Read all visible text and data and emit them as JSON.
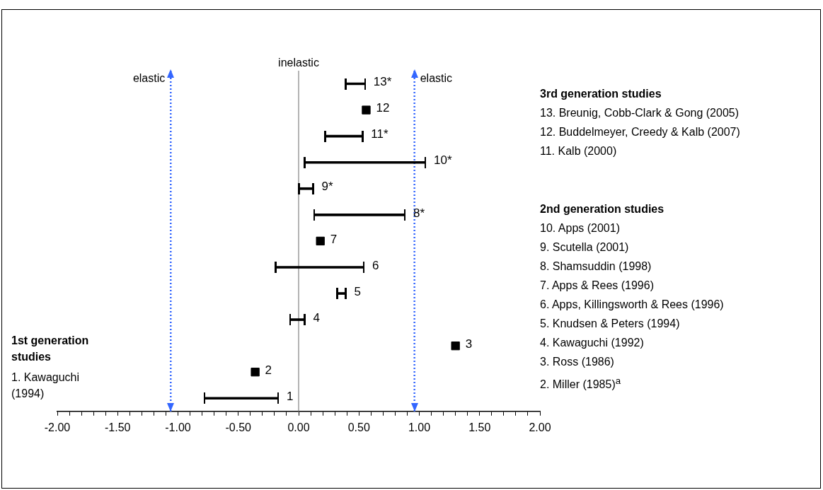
{
  "chart_data": {
    "type": "bar",
    "orientation": "horizontal",
    "categories": [
      "13*",
      "12",
      "11*",
      "10*",
      "9*",
      "8*",
      "7",
      "6",
      "5",
      "4",
      "3",
      "2",
      "1"
    ],
    "series": [
      {
        "type": "bar",
        "color": "#000000",
        "base": [
          0.39,
          null,
          0.22,
          0.05,
          0.0,
          0.13,
          null,
          -0.19,
          0.32,
          -0.07,
          null,
          null,
          -0.78
        ],
        "values": [
          0.16,
          null,
          0.31,
          1.0,
          0.12,
          0.75,
          null,
          0.73,
          0.07,
          0.12,
          null,
          null,
          0.61
        ]
      },
      {
        "type": "scatter",
        "color": "#000000",
        "marker": "square",
        "values": [
          null,
          0.56,
          null,
          null,
          null,
          null,
          0.18,
          null,
          null,
          null,
          1.3,
          -0.36,
          null
        ]
      }
    ],
    "xlim": [
      -2,
      2
    ],
    "xticks": [
      {
        "value": -2,
        "label": "-2.00"
      },
      {
        "value": -1.9,
        "label": null
      },
      {
        "value": -1.8,
        "label": null
      },
      {
        "value": -1.7,
        "label": null
      },
      {
        "value": -1.6,
        "label": null
      },
      {
        "value": -1.5,
        "label": "-1.50"
      },
      {
        "value": -1.4,
        "label": null
      },
      {
        "value": -1.3,
        "label": null
      },
      {
        "value": -1.2,
        "label": null
      },
      {
        "value": -1.1,
        "label": null
      },
      {
        "value": -1,
        "label": "-1.00"
      },
      {
        "value": -0.9,
        "label": null
      },
      {
        "value": -0.8,
        "label": null
      },
      {
        "value": -0.7,
        "label": null
      },
      {
        "value": -0.6,
        "label": null
      },
      {
        "value": -0.5,
        "label": "-0.50"
      },
      {
        "value": -0.4,
        "label": null
      },
      {
        "value": -0.3,
        "label": null
      },
      {
        "value": -0.2,
        "label": null
      },
      {
        "value": -0.1,
        "label": null
      },
      {
        "value": 0,
        "label": "0.00"
      },
      {
        "value": 0.1,
        "label": null
      },
      {
        "value": 0.2,
        "label": null
      },
      {
        "value": 0.3,
        "label": null
      },
      {
        "value": 0.4,
        "label": null
      },
      {
        "value": 0.5,
        "label": "0.50"
      },
      {
        "value": 0.6,
        "label": null
      },
      {
        "value": 0.7,
        "label": null
      },
      {
        "value": 0.8,
        "label": null
      },
      {
        "value": 0.9,
        "label": null
      },
      {
        "value": 1,
        "label": "1.00"
      },
      {
        "value": 1.1,
        "label": null
      },
      {
        "value": 1.2,
        "label": null
      },
      {
        "value": 1.3,
        "label": null
      },
      {
        "value": 1.4,
        "label": null
      },
      {
        "value": 1.5,
        "label": "1.50"
      },
      {
        "value": 1.6,
        "label": null
      },
      {
        "value": 1.7,
        "label": null
      },
      {
        "value": 1.8,
        "label": null
      },
      {
        "value": 1.9,
        "label": null
      },
      {
        "value": 2,
        "label": "2.00"
      }
    ],
    "tick_labels": "x",
    "grid": false,
    "legend": false,
    "ref_lines": [
      {
        "axis": "x",
        "value": -1.06,
        "label": "elastic",
        "color": "#3366ff",
        "line_style": "dotted"
      },
      {
        "axis": "x",
        "value": 0,
        "label": "inelastic",
        "color": "#808080",
        "line_style": "solid"
      },
      {
        "axis": "x",
        "value": 0.96,
        "label": "elastic",
        "color": "#3366ff",
        "line_style": "dotted"
      }
    ],
    "annotations": [
      "3rd generation studies",
      "13. Breunig, Cobb-Clark & Gong (2005)",
      "12. Buddelmeyer, Creedy & Kalb (2007)",
      "11. Kalb (2000)",
      "2nd generation studies",
      "10. Apps (2001)",
      "9. Scutella (2001)",
      "8. Shamsuddin (1998)",
      "7. Apps & Rees (1996)",
      "6. Apps, Killingsworth & Rees (1996)",
      "5. Knudsen & Peters (1994)",
      "4. Kawaguchi (1992)",
      "3. Ross (1986)",
      "2. Miller (1985)$^{a}$",
      "1st generation studies",
      "1. Kawaguchi (1994)"
    ]
  }
}
